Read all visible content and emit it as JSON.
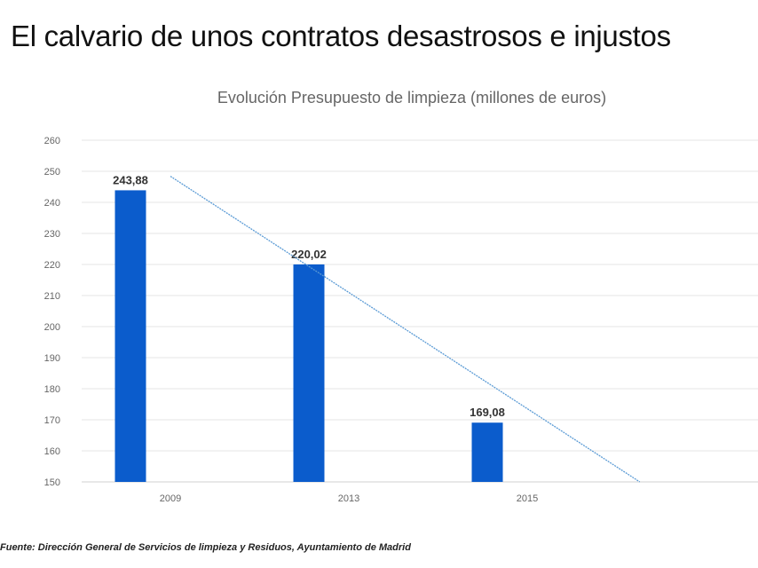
{
  "slide": {
    "title": "El calvario de unos contratos desastrosos e injustos",
    "source": "Fuente:  Dirección General de Servicios de limpieza y Residuos, Ayuntamiento de Madrid"
  },
  "chart_data": {
    "type": "bar",
    "title": "Evolución Presupuesto de limpieza (millones de euros)",
    "xlabel": "",
    "ylabel": "",
    "categories": [
      "2009",
      "2013",
      "2015"
    ],
    "values": [
      243.88,
      220.02,
      169.08
    ],
    "data_labels": [
      "243,88",
      "220,02",
      "169,08"
    ],
    "ylim": [
      150,
      260
    ],
    "yticks": [
      150,
      160,
      170,
      180,
      190,
      200,
      210,
      220,
      230,
      240,
      250,
      260
    ],
    "grid": true,
    "legend": "none",
    "trendline": "linear",
    "colors": {
      "bar": "#0b5ccc",
      "trendline": "#5b9bd5",
      "grid": "#e6e6e6"
    }
  }
}
